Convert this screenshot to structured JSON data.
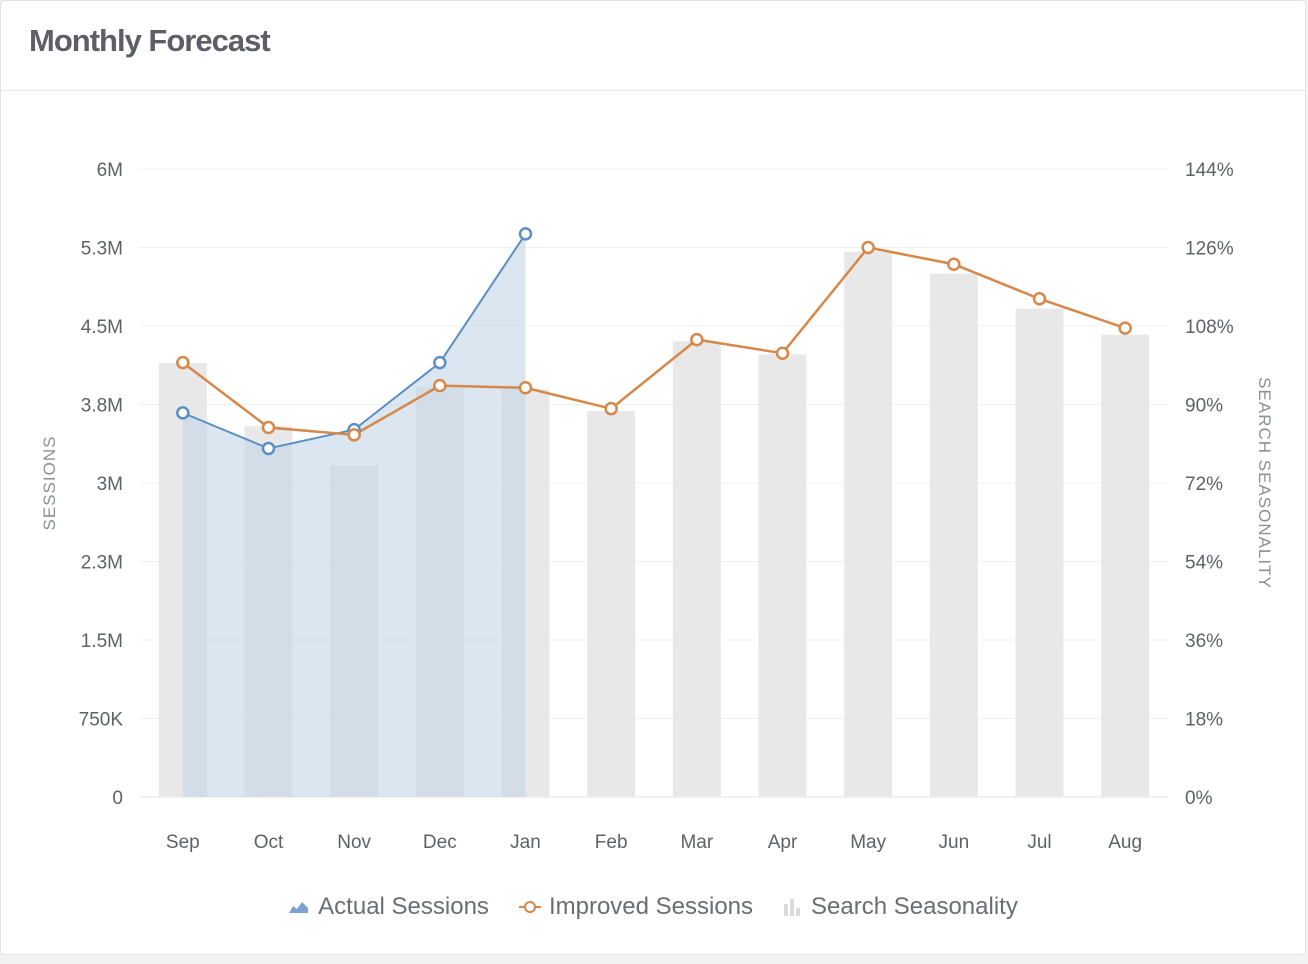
{
  "header": {
    "title": "Monthly Forecast"
  },
  "colors": {
    "actual": "#5b8fc4",
    "actual_fill": "#dfe7f1",
    "improved": "#d6874a",
    "seasonality": "#e8e8e8",
    "grid": "#f0f0f2"
  },
  "chart_data": {
    "type": "line",
    "categories": [
      "Sep",
      "Oct",
      "Nov",
      "Dec",
      "Jan",
      "Feb",
      "Mar",
      "Apr",
      "May",
      "Jun",
      "Jul",
      "Aug"
    ],
    "y_left": {
      "label": "SESSIONS",
      "ticks": [
        "0",
        "750K",
        "1.5M",
        "2.3M",
        "3M",
        "3.8M",
        "4.5M",
        "5.3M",
        "6M"
      ],
      "range": [
        0,
        6000000
      ]
    },
    "y_right": {
      "label": "SEARCH SEASONALITY",
      "ticks": [
        "0%",
        "18%",
        "36%",
        "54%",
        "72%",
        "90%",
        "108%",
        "126%",
        "144%"
      ],
      "range": [
        0,
        144
      ]
    },
    "series": [
      {
        "name": "Actual Sessions",
        "kind": "area",
        "axis": "left",
        "values": [
          3670000,
          3330000,
          3510000,
          4150000,
          5380000,
          null,
          null,
          null,
          null,
          null,
          null,
          null
        ]
      },
      {
        "name": "Improved Sessions",
        "kind": "line",
        "axis": "left",
        "values": [
          4150000,
          3530000,
          3460000,
          3930000,
          3910000,
          3710000,
          4370000,
          4240000,
          5250000,
          5090000,
          4760000,
          4480000
        ]
      },
      {
        "name": "Search Seasonality",
        "kind": "bar",
        "axis": "right",
        "values": [
          99.5,
          85,
          76,
          94,
          93.5,
          88.5,
          104.5,
          101.5,
          125,
          120,
          112,
          106
        ]
      }
    ],
    "grid": true,
    "legend": "bottom"
  }
}
